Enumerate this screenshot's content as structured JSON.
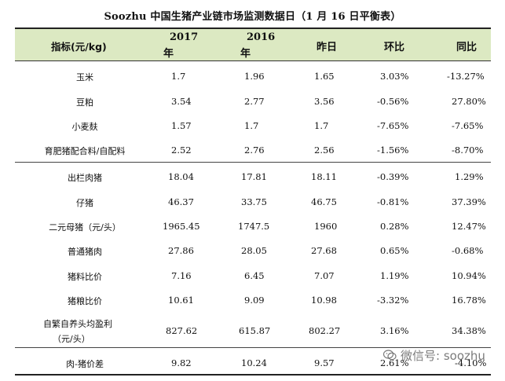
{
  "title": "Soozhu 中国生猪产业链市场监测数据日（1 月 16 日平衡表）",
  "header": {
    "indicator": "指标(元/kg)",
    "y2017": "2017",
    "y2017_suffix": "年",
    "y2016": "2016",
    "y2016_suffix": "年",
    "yesterday": "昨日",
    "mom": "环比",
    "yoy": "同比"
  },
  "rows": [
    {
      "label": "玉米",
      "v2017": "1.7",
      "v2016": "1.96",
      "yesterday": "1.65",
      "mom": "3.03%",
      "yoy": "-13.27%"
    },
    {
      "label": "豆粕",
      "v2017": "3.54",
      "v2016": "2.77",
      "yesterday": "3.56",
      "mom": "-0.56%",
      "yoy": "27.80%"
    },
    {
      "label": "小麦麸",
      "v2017": "1.57",
      "v2016": "1.7",
      "yesterday": "1.7",
      "mom": "-7.65%",
      "yoy": "-7.65%"
    },
    {
      "label": "育肥猪配合料/自配料",
      "v2017": "2.52",
      "v2016": "2.76",
      "yesterday": "2.56",
      "mom": "-1.56%",
      "yoy": "-8.70%"
    },
    {
      "label": "出栏肉猪",
      "v2017": "18.04",
      "v2016": "17.81",
      "yesterday": "18.11",
      "mom": "-0.39%",
      "yoy": "1.29%"
    },
    {
      "label": "仔猪",
      "v2017": "46.37",
      "v2016": "33.75",
      "yesterday": "46.75",
      "mom": "-0.81%",
      "yoy": "37.39%"
    },
    {
      "label": "二元母猪（元/头）",
      "v2017": "1965.45",
      "v2016": "1747.5",
      "yesterday": "1960",
      "mom": "0.28%",
      "yoy": "12.47%"
    },
    {
      "label": "普通猪肉",
      "v2017": "27.86",
      "v2016": "28.05",
      "yesterday": "27.68",
      "mom": "0.65%",
      "yoy": "-0.68%"
    },
    {
      "label": "猪料比价",
      "v2017": "7.16",
      "v2016": "6.45",
      "yesterday": "7.07",
      "mom": "1.19%",
      "yoy": "10.94%"
    },
    {
      "label": "猪粮比价",
      "v2017": "10.61",
      "v2016": "9.09",
      "yesterday": "10.98",
      "mom": "-3.32%",
      "yoy": "16.78%"
    },
    {
      "label": "自繁自养头均盈利",
      "label2": "（元/头）",
      "v2017": "827.62",
      "v2016": "615.87",
      "yesterday": "802.27",
      "mom": "3.16%",
      "yoy": "34.38%"
    },
    {
      "label": "肉-猪价差",
      "v2017": "9.82",
      "v2016": "10.24",
      "yesterday": "9.57",
      "mom": "2.61%",
      "yoy": "-4.10%"
    }
  ],
  "watermark": {
    "text": "微信号: soozhu",
    "icon": "wechat-icon"
  }
}
